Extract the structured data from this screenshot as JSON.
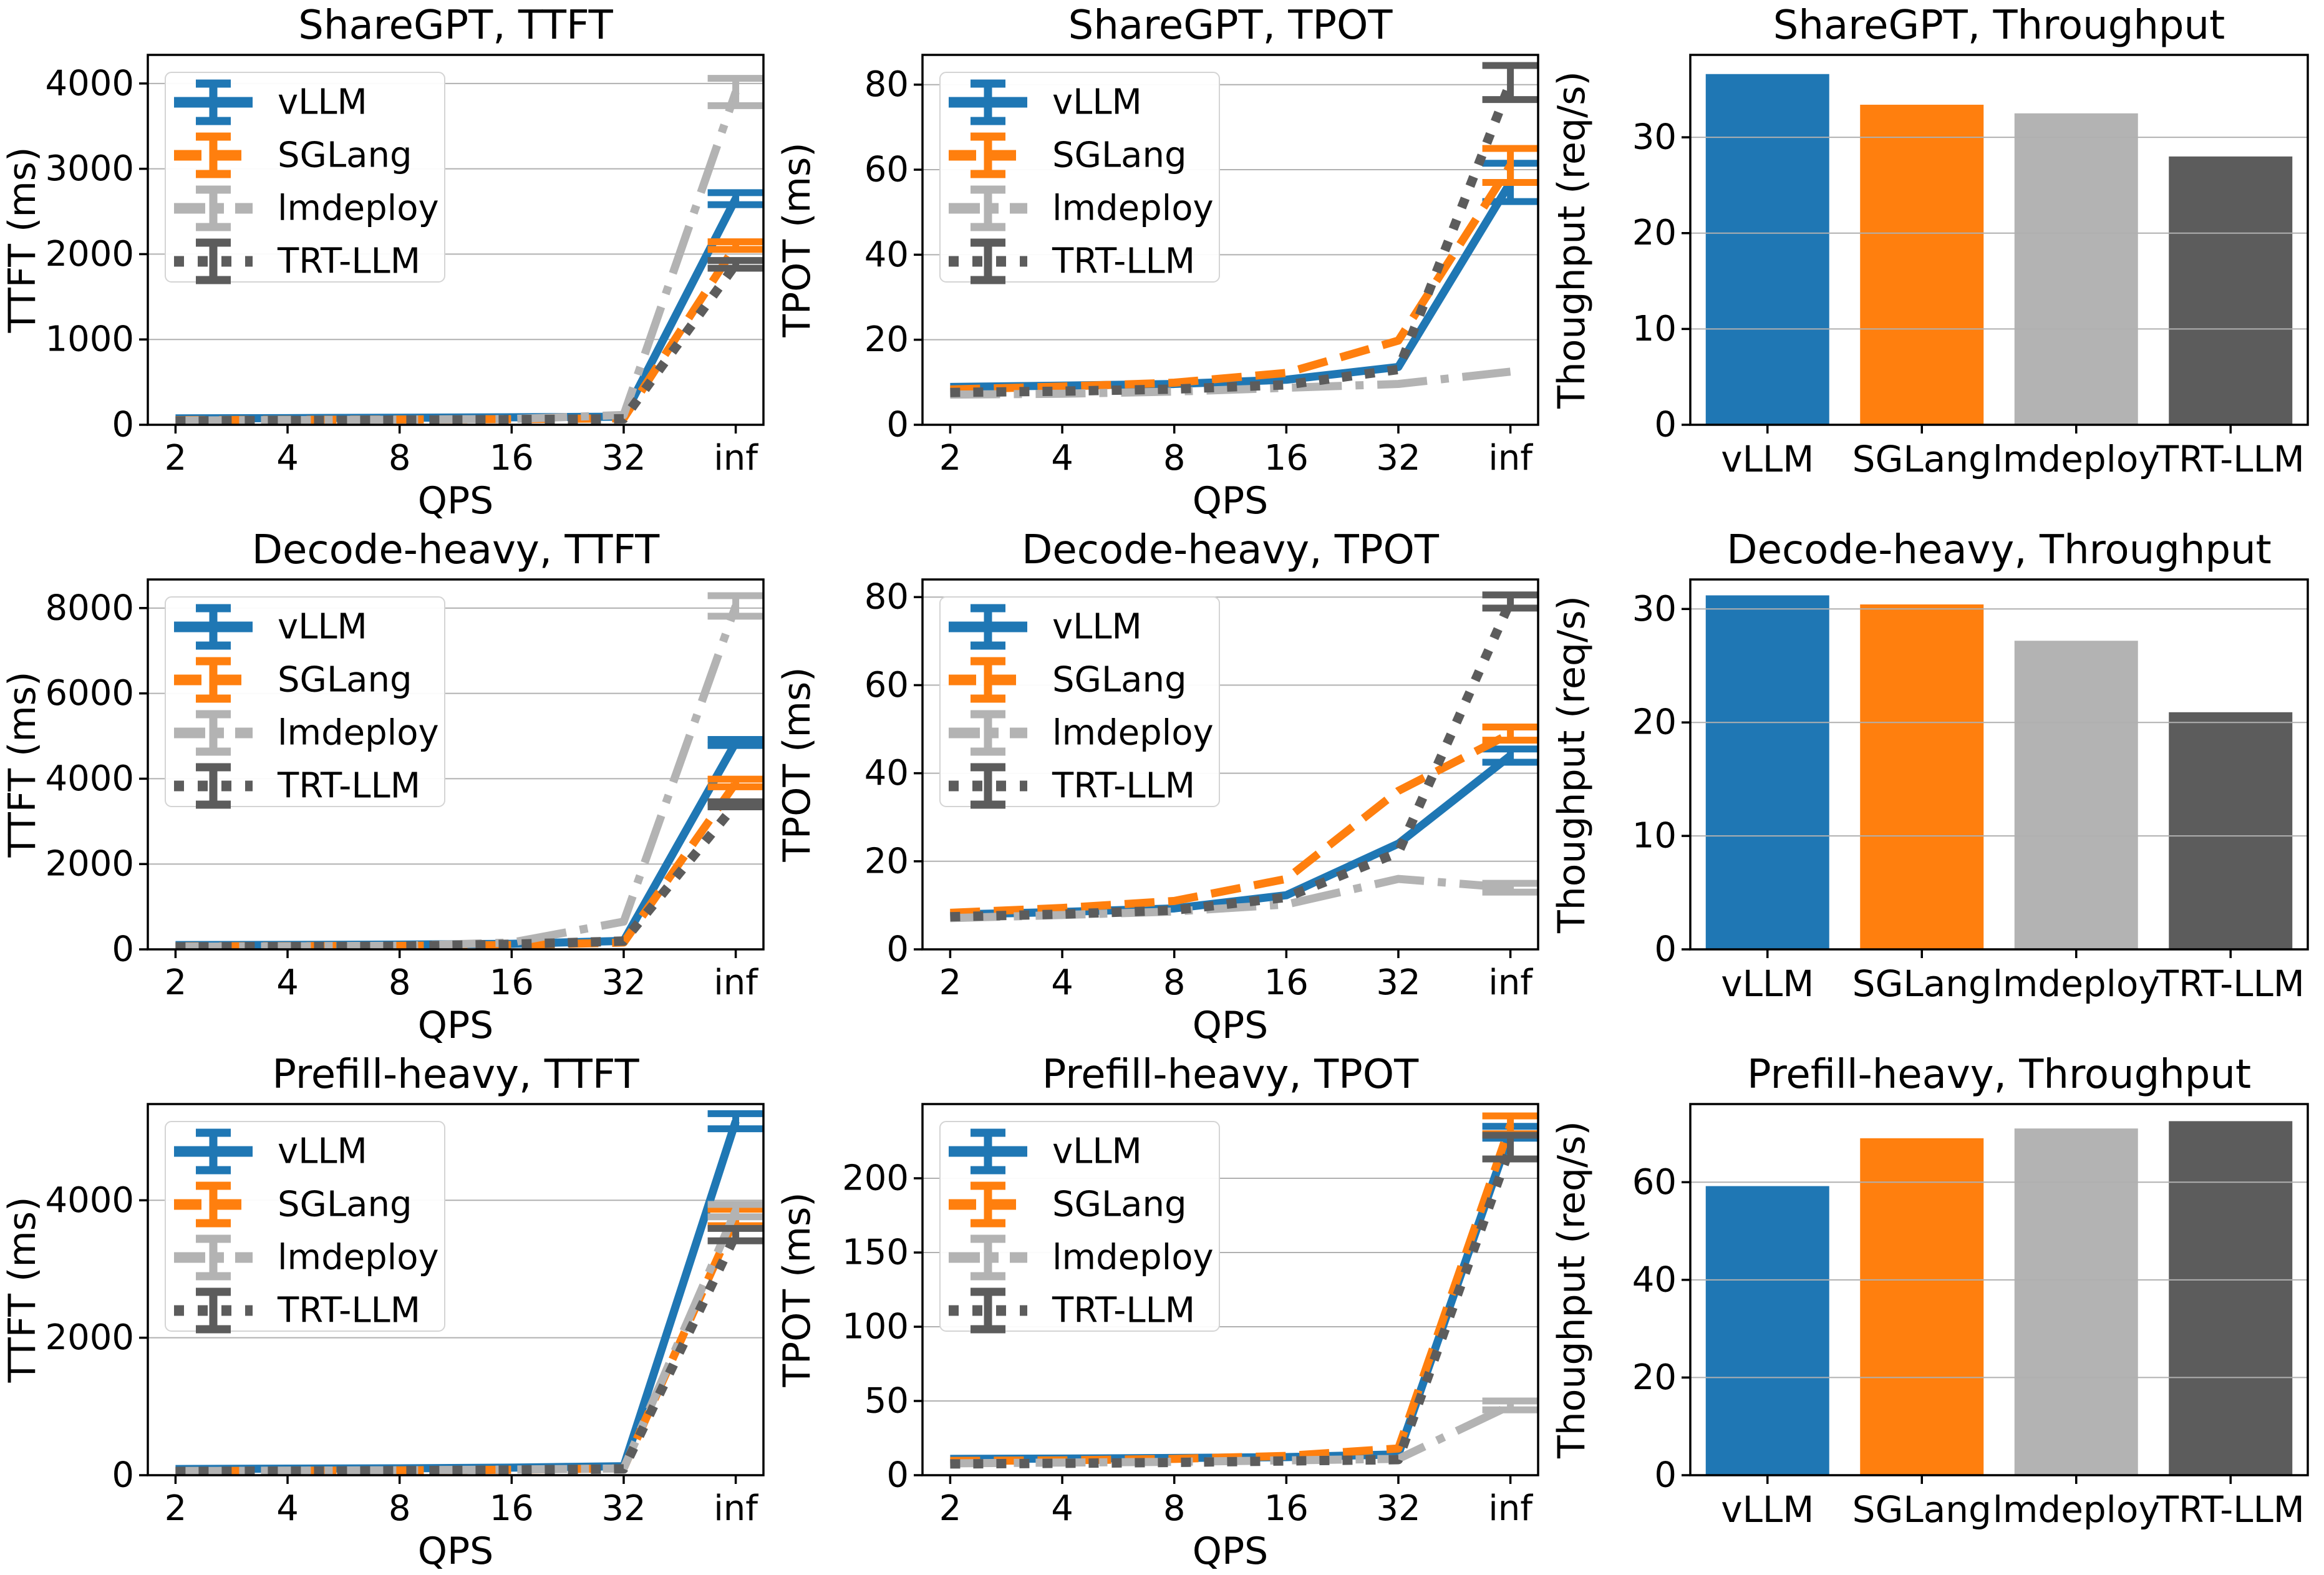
{
  "figure": {
    "background": "#ffffff",
    "workloads": [
      "ShareGPT",
      "Decode-heavy",
      "Prefill-heavy"
    ],
    "metrics": [
      "TTFT",
      "TPOT",
      "Throughput"
    ]
  },
  "axis": {
    "spine_color": "#000000",
    "grid_color": "#b0b0b0",
    "x_label": "QPS",
    "x_ticklabels": [
      "2",
      "4",
      "8",
      "16",
      "32",
      "inf"
    ]
  },
  "legend": {
    "entries": [
      "vLLM",
      "SGLang",
      "lmdeploy",
      "TRT-LLM"
    ],
    "border_color": "#d4d4d4",
    "background": "#ffffff"
  },
  "series_styles": {
    "vLLM": {
      "color": "#1f77b4",
      "dash": "solid"
    },
    "SGLang": {
      "color": "#ff7f0e",
      "dash": "dashed"
    },
    "lmdeploy": {
      "color": "#b3b3b3",
      "dash": "dashdot"
    },
    "TRT-LLM": {
      "color": "#5c5c5c",
      "dash": "dotted"
    }
  },
  "chart_data": [
    {
      "id": "sharegpt-ttft",
      "type": "line",
      "title": "ShareGPT, TTFT",
      "ylabel": "TTFT (ms)",
      "xlabel": "QPS",
      "x": [
        "2",
        "4",
        "8",
        "16",
        "32",
        "inf"
      ],
      "yticks": [
        0,
        1000,
        2000,
        3000,
        4000
      ],
      "ylim": [
        0,
        4335
      ],
      "legend": true,
      "series": [
        {
          "name": "vLLM",
          "values": [
            75,
            78,
            82,
            88,
            95,
            2650
          ],
          "err_last": 70
        },
        {
          "name": "SGLang",
          "values": [
            55,
            58,
            62,
            66,
            75,
            2100
          ],
          "err_last": 45
        },
        {
          "name": "lmdeploy",
          "values": [
            50,
            55,
            60,
            68,
            115,
            3900
          ],
          "err_last": 160
        },
        {
          "name": "TRT-LLM",
          "values": [
            45,
            50,
            55,
            60,
            70,
            1880
          ],
          "err_last": 45
        }
      ]
    },
    {
      "id": "sharegpt-tpot",
      "type": "line",
      "title": "ShareGPT, TPOT",
      "ylabel": "TPOT (ms)",
      "xlabel": "QPS",
      "x": [
        "2",
        "4",
        "8",
        "16",
        "32",
        "inf"
      ],
      "yticks": [
        0,
        20,
        40,
        60,
        80
      ],
      "ylim": [
        0,
        87
      ],
      "legend": true,
      "series": [
        {
          "name": "vLLM",
          "values": [
            8.9,
            9.2,
            9.6,
            10.6,
            13.6,
            57
          ],
          "err_last": 4.5
        },
        {
          "name": "SGLang",
          "values": [
            8.3,
            9.0,
            9.9,
            12.2,
            19.8,
            61
          ],
          "err_last": 4
        },
        {
          "name": "lmdeploy",
          "values": [
            7.1,
            7.3,
            7.8,
            8.7,
            9.6,
            12.5
          ],
          "err_last": 0
        },
        {
          "name": "TRT-LLM",
          "values": [
            7.6,
            7.9,
            8.4,
            9.4,
            13.0,
            80.5
          ],
          "err_last": 4
        }
      ]
    },
    {
      "id": "sharegpt-throughput",
      "type": "bar",
      "title": "ShareGPT, Throughput",
      "ylabel": "Thoughput (req/s)",
      "categories": [
        "vLLM",
        "SGLang",
        "lmdeploy",
        "TRT-LLM"
      ],
      "values": [
        36.6,
        33.4,
        32.5,
        28.0
      ],
      "yticks": [
        0,
        10,
        20,
        30
      ],
      "ylim": [
        0,
        38.6
      ]
    },
    {
      "id": "decode-heavy-ttft",
      "type": "line",
      "title": "Decode-heavy, TTFT",
      "ylabel": "TTFT (ms)",
      "xlabel": "QPS",
      "x": [
        "2",
        "4",
        "8",
        "16",
        "32",
        "inf"
      ],
      "yticks": [
        0,
        2000,
        4000,
        6000,
        8000
      ],
      "ylim": [
        0,
        8670
      ],
      "legend": true,
      "series": [
        {
          "name": "vLLM",
          "values": [
            100,
            105,
            112,
            130,
            200,
            4850
          ],
          "err_last": 70
        },
        {
          "name": "SGLang",
          "values": [
            70,
            75,
            82,
            100,
            160,
            3900
          ],
          "err_last": 90
        },
        {
          "name": "lmdeploy",
          "values": [
            62,
            70,
            85,
            160,
            650,
            8050
          ],
          "err_last": 240
        },
        {
          "name": "TRT-LLM",
          "values": [
            60,
            65,
            75,
            120,
            195,
            3400
          ],
          "err_last": 60
        }
      ]
    },
    {
      "id": "decode-heavy-tpot",
      "type": "line",
      "title": "Decode-heavy, TPOT",
      "ylabel": "TPOT (ms)",
      "xlabel": "QPS",
      "x": [
        "2",
        "4",
        "8",
        "16",
        "32",
        "inf"
      ],
      "yticks": [
        0,
        20,
        40,
        60,
        80
      ],
      "ylim": [
        0,
        84
      ],
      "legend": true,
      "series": [
        {
          "name": "vLLM",
          "values": [
            7.9,
            8.5,
            9.3,
            12.3,
            24,
            44
          ],
          "err_last": 1.5
        },
        {
          "name": "SGLang",
          "values": [
            8.3,
            9.4,
            11,
            16,
            36,
            49
          ],
          "err_last": 1.5
        },
        {
          "name": "lmdeploy",
          "values": [
            7.1,
            7.8,
            8.6,
            10.2,
            16,
            14
          ],
          "err_last": 1
        },
        {
          "name": "TRT-LLM",
          "values": [
            7.4,
            8.0,
            8.9,
            11.8,
            22,
            79
          ],
          "err_last": 1.5
        }
      ]
    },
    {
      "id": "decode-heavy-throughput",
      "type": "bar",
      "title": "Decode-heavy, Throughput",
      "ylabel": "Thoughput (req/s)",
      "categories": [
        "vLLM",
        "SGLang",
        "lmdeploy",
        "TRT-LLM"
      ],
      "values": [
        31.2,
        30.4,
        27.2,
        20.9
      ],
      "yticks": [
        0,
        10,
        20,
        30
      ],
      "ylim": [
        0,
        32.6
      ]
    },
    {
      "id": "prefill-heavy-ttft",
      "type": "line",
      "title": "Prefill-heavy, TTFT",
      "ylabel": "TTFT (ms)",
      "xlabel": "QPS",
      "x": [
        "2",
        "4",
        "8",
        "16",
        "32",
        "inf"
      ],
      "yticks": [
        0,
        2000,
        4000
      ],
      "ylim": [
        0,
        5400
      ],
      "legend": true,
      "series": [
        {
          "name": "vLLM",
          "values": [
            90,
            95,
            100,
            110,
            130,
            5150
          ],
          "err_last": 110
        },
        {
          "name": "SGLang",
          "values": [
            60,
            65,
            70,
            80,
            100,
            3750
          ],
          "err_last": 120
        },
        {
          "name": "lmdeploy",
          "values": [
            60,
            66,
            72,
            82,
            98,
            3850
          ],
          "err_last": 90
        },
        {
          "name": "TRT-LLM",
          "values": [
            55,
            60,
            66,
            75,
            92,
            3500
          ],
          "err_last": 90
        }
      ]
    },
    {
      "id": "prefill-heavy-tpot",
      "type": "line",
      "title": "Prefill-heavy, TPOT",
      "ylabel": "TPOT (ms)",
      "xlabel": "QPS",
      "x": [
        "2",
        "4",
        "8",
        "16",
        "32",
        "inf"
      ],
      "yticks": [
        0,
        50,
        100,
        150,
        200
      ],
      "ylim": [
        0,
        250
      ],
      "legend": true,
      "series": [
        {
          "name": "vLLM",
          "values": [
            11,
            11.2,
            11.6,
            12.2,
            14,
            231
          ],
          "err_last": 4
        },
        {
          "name": "SGLang",
          "values": [
            9.6,
            10,
            11,
            13,
            18,
            236
          ],
          "err_last": 6
        },
        {
          "name": "lmdeploy",
          "values": [
            8,
            8.5,
            9,
            10,
            11,
            47
          ],
          "err_last": 3
        },
        {
          "name": "TRT-LLM",
          "values": [
            7.6,
            8,
            8.6,
            9.6,
            10.5,
            221
          ],
          "err_last": 8
        }
      ]
    },
    {
      "id": "prefill-heavy-throughput",
      "type": "bar",
      "title": "Prefill-heavy, Throughput",
      "ylabel": "Thoughput (req/s)",
      "categories": [
        "vLLM",
        "SGLang",
        "lmdeploy",
        "TRT-LLM"
      ],
      "values": [
        59.2,
        69.0,
        71.0,
        72.5
      ],
      "yticks": [
        0,
        20,
        40,
        60
      ],
      "ylim": [
        0,
        76
      ]
    }
  ]
}
